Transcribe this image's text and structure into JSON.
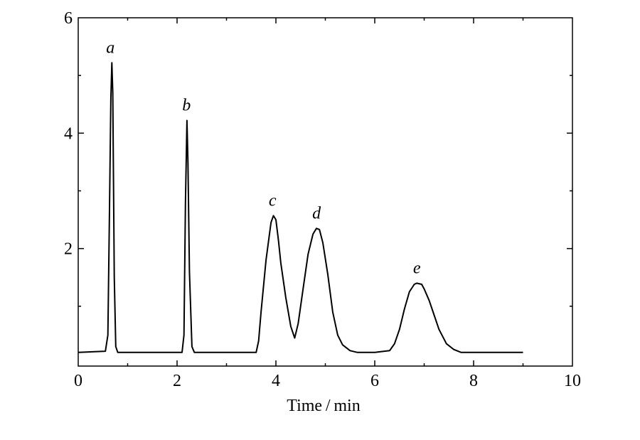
{
  "chart_data": {
    "type": "line",
    "title": "",
    "xlabel": "Time / min",
    "ylabel": "",
    "xlim": [
      0,
      10
    ],
    "ylim": [
      0,
      6
    ],
    "x_ticks": [
      0,
      2,
      4,
      6,
      8,
      10
    ],
    "x_tick_labels": [
      "0",
      "2",
      "4",
      "6",
      "8",
      "10"
    ],
    "y_ticks": [
      2,
      4,
      6
    ],
    "y_tick_labels": [
      "2",
      "4",
      "6"
    ],
    "grid": false,
    "line_color": "#000000",
    "peak_annotations": [
      {
        "text": "a",
        "x": 0.68,
        "y": 5.22
      },
      {
        "text": "b",
        "x": 2.22,
        "y": 4.22
      },
      {
        "text": "c",
        "x": 3.96,
        "y": 2.57
      },
      {
        "text": "d",
        "x": 4.85,
        "y": 2.35
      },
      {
        "text": "e",
        "x": 6.88,
        "y": 1.4
      }
    ],
    "series": [
      {
        "x": [
          0.0,
          0.55,
          0.6,
          0.63,
          0.66,
          0.68,
          0.7,
          0.73,
          0.76,
          0.8,
          0.9,
          1.5,
          2.1,
          2.14,
          2.17,
          2.2,
          2.22,
          2.25,
          2.3,
          2.35,
          2.4,
          2.5,
          3.0,
          3.6,
          3.65,
          3.7,
          3.8,
          3.9,
          3.95,
          4.0,
          4.05,
          4.1,
          4.2,
          4.3,
          4.38,
          4.45,
          4.55,
          4.65,
          4.75,
          4.82,
          4.88,
          4.95,
          5.05,
          5.15,
          5.25,
          5.35,
          5.5,
          5.65,
          6.0,
          6.3,
          6.4,
          6.5,
          6.6,
          6.7,
          6.8,
          6.85,
          6.95,
          7.0,
          7.1,
          7.2,
          7.3,
          7.45,
          7.6,
          7.75,
          8.0,
          9.0
        ],
        "y": [
          0.2,
          0.22,
          0.5,
          2.5,
          4.6,
          5.22,
          4.7,
          1.5,
          0.3,
          0.2,
          0.2,
          0.2,
          0.2,
          0.5,
          2.8,
          4.22,
          3.5,
          1.6,
          0.3,
          0.2,
          0.2,
          0.2,
          0.2,
          0.2,
          0.4,
          0.9,
          1.8,
          2.45,
          2.57,
          2.5,
          2.15,
          1.75,
          1.15,
          0.65,
          0.45,
          0.7,
          1.3,
          1.9,
          2.25,
          2.35,
          2.33,
          2.1,
          1.55,
          0.9,
          0.5,
          0.33,
          0.23,
          0.2,
          0.2,
          0.23,
          0.35,
          0.6,
          0.95,
          1.25,
          1.38,
          1.4,
          1.38,
          1.3,
          1.1,
          0.85,
          0.6,
          0.35,
          0.25,
          0.2,
          0.2,
          0.2
        ]
      }
    ]
  }
}
